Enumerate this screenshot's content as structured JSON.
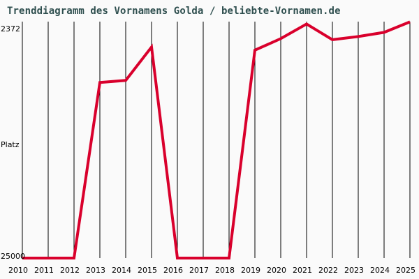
{
  "title": "Trenddiagramm des Vornamens Golda / beliebte-Vornamen.de",
  "y_axis": {
    "top_label": "2372",
    "mid_label": "Platz",
    "bottom_label": "25000"
  },
  "line_color": "#d9002c",
  "chart_data": {
    "type": "line",
    "title": "Trenddiagramm des Vornamens Golda / beliebte-Vornamen.de",
    "xlabel": "",
    "ylabel": "Platz",
    "ylim": [
      25000,
      2372
    ],
    "y_inverted": true,
    "grid": {
      "vertical": true,
      "horizontal": false
    },
    "categories": [
      "2010",
      "2011",
      "2012",
      "2013",
      "2014",
      "2015",
      "2016",
      "2017",
      "2018",
      "2019",
      "2020",
      "2021",
      "2022",
      "2023",
      "2024",
      "2025"
    ],
    "series": [
      {
        "name": "Golda",
        "values": [
          25000,
          25000,
          25000,
          8200,
          8000,
          4800,
          25000,
          25000,
          25000,
          5100,
          4000,
          2600,
          4100,
          3800,
          3400,
          2400
        ]
      }
    ]
  }
}
